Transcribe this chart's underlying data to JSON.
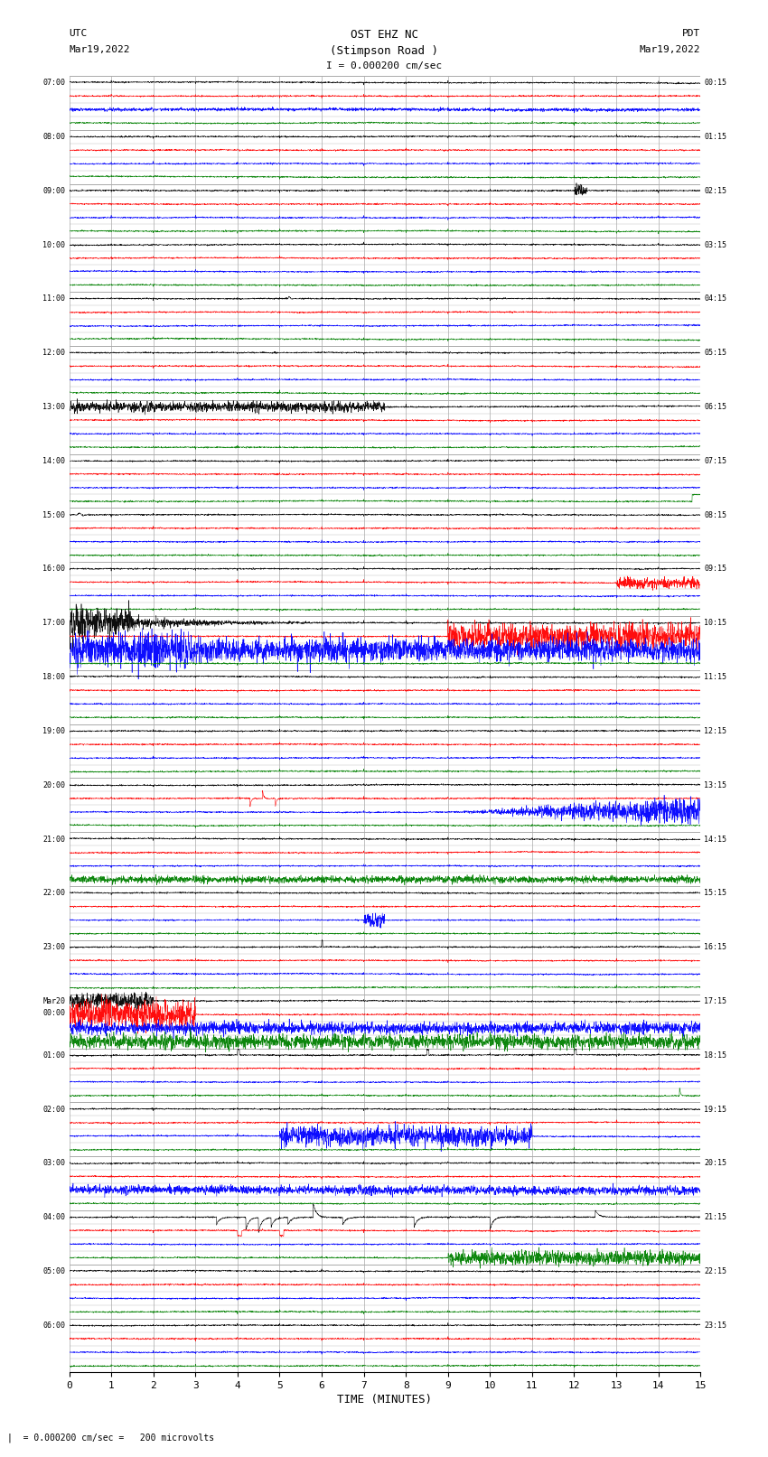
{
  "title_line1": "OST EHZ NC",
  "title_line2": "(Stimpson Road )",
  "title_line3": "I = 0.000200 cm/sec",
  "left_label_top": "UTC",
  "left_label_date": "Mar19,2022",
  "right_label_top": "PDT",
  "right_label_date": "Mar19,2022",
  "bottom_label": "TIME (MINUTES)",
  "scale_label": "= 0.000200 cm/sec =   200 microvolts",
  "xlabel_ticks": [
    0,
    1,
    2,
    3,
    4,
    5,
    6,
    7,
    8,
    9,
    10,
    11,
    12,
    13,
    14,
    15
  ],
  "utc_labels": [
    "07:00",
    "08:00",
    "09:00",
    "10:00",
    "11:00",
    "12:00",
    "13:00",
    "14:00",
    "15:00",
    "16:00",
    "17:00",
    "18:00",
    "19:00",
    "20:00",
    "21:00",
    "22:00",
    "23:00",
    "Mar20\n00:00",
    "01:00",
    "02:00",
    "03:00",
    "04:00",
    "05:00",
    "06:00"
  ],
  "pdt_labels": [
    "00:15",
    "01:15",
    "02:15",
    "03:15",
    "04:15",
    "05:15",
    "06:15",
    "07:15",
    "08:15",
    "09:15",
    "10:15",
    "11:15",
    "12:15",
    "13:15",
    "14:15",
    "15:15",
    "16:15",
    "17:15",
    "18:15",
    "19:15",
    "20:15",
    "21:15",
    "22:15",
    "23:15"
  ],
  "num_rows": 24,
  "minutes": 15,
  "bg_color": "#ffffff",
  "trace_colors": [
    "black",
    "red",
    "blue",
    "green"
  ],
  "grid_color": "#aaaaaa",
  "seed": 42
}
